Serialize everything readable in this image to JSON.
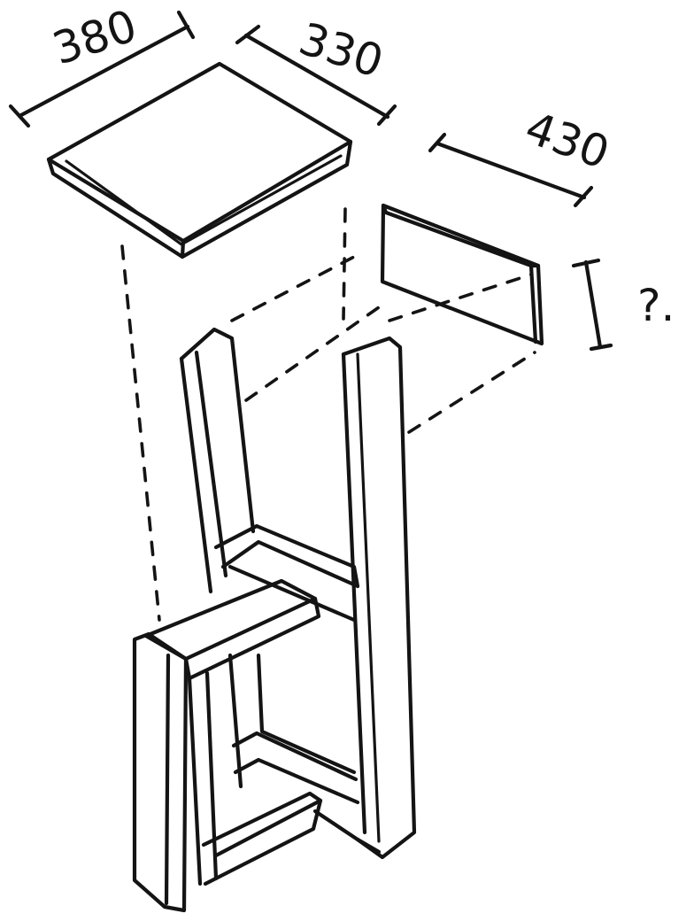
{
  "colors": {
    "ink": "#141414",
    "paper": "#ffffff"
  },
  "dimensions": {
    "seat_width": "380",
    "seat_depth": "330",
    "backrest_length": "430",
    "backrest_height": "?."
  }
}
